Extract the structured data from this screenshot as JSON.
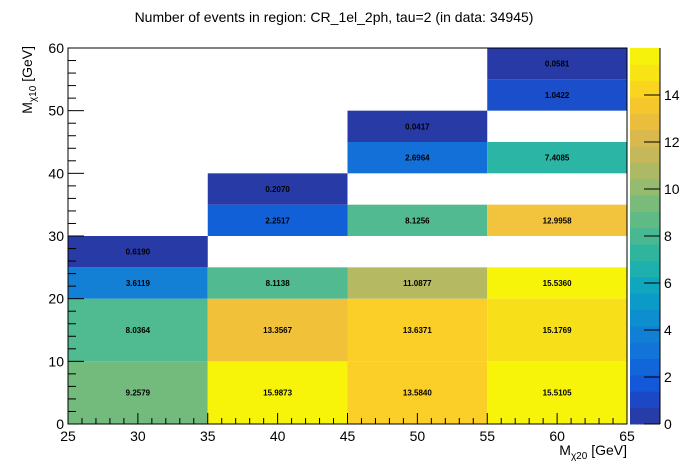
{
  "chart_data": {
    "type": "heatmap",
    "title": "Number of events in region: CR_1el_2ph, tau=2 (in data: 34945)",
    "xlabel": {
      "base": "M",
      "sub": "χ20",
      "unit": " [GeV]"
    },
    "ylabel": {
      "base": "M",
      "sub": "χ10",
      "unit": " [GeV]"
    },
    "xlim": [
      25,
      65
    ],
    "ylim": [
      0,
      60
    ],
    "zlim": [
      0,
      16
    ],
    "x_ticks": [
      "25",
      "30",
      "35",
      "40",
      "45",
      "50",
      "55",
      "60",
      "65"
    ],
    "y_ticks": [
      "0",
      "10",
      "20",
      "30",
      "40",
      "50",
      "60"
    ],
    "z_ticks": [
      "0",
      "2",
      "4",
      "6",
      "8",
      "10",
      "12",
      "14"
    ],
    "cells": [
      {
        "x": [
          25,
          35
        ],
        "y": [
          0,
          10
        ],
        "value": "9.2579",
        "color": "#72bb7d"
      },
      {
        "x": [
          25,
          35
        ],
        "y": [
          10,
          20
        ],
        "value": "8.0364",
        "color": "#50ba91"
      },
      {
        "x": [
          25,
          35
        ],
        "y": [
          20,
          25
        ],
        "value": "3.6119",
        "color": "#1380d5"
      },
      {
        "x": [
          25,
          35
        ],
        "y": [
          25,
          30
        ],
        "value": "0.6190",
        "color": "#273aa6"
      },
      {
        "x": [
          35,
          45
        ],
        "y": [
          0,
          10
        ],
        "value": "15.9873",
        "color": "#f7f40a"
      },
      {
        "x": [
          35,
          45
        ],
        "y": [
          10,
          20
        ],
        "value": "13.3567",
        "color": "#f2c13a"
      },
      {
        "x": [
          35,
          45
        ],
        "y": [
          20,
          25
        ],
        "value": "8.1138",
        "color": "#52ba90"
      },
      {
        "x": [
          35,
          45
        ],
        "y": [
          30,
          35
        ],
        "value": "2.2517",
        "color": "#1160d8"
      },
      {
        "x": [
          35,
          45
        ],
        "y": [
          35,
          40
        ],
        "value": "0.2070",
        "color": "#273aa6"
      },
      {
        "x": [
          45,
          55
        ],
        "y": [
          0,
          10
        ],
        "value": "13.5840",
        "color": "#fbcf28"
      },
      {
        "x": [
          45,
          55
        ],
        "y": [
          10,
          20
        ],
        "value": "13.6371",
        "color": "#fbcf28"
      },
      {
        "x": [
          45,
          55
        ],
        "y": [
          20,
          25
        ],
        "value": "11.0877",
        "color": "#b5ba62"
      },
      {
        "x": [
          45,
          55
        ],
        "y": [
          30,
          35
        ],
        "value": "8.1256",
        "color": "#52ba90"
      },
      {
        "x": [
          45,
          55
        ],
        "y": [
          40,
          45
        ],
        "value": "2.6964",
        "color": "#1270d8"
      },
      {
        "x": [
          45,
          55
        ],
        "y": [
          45,
          50
        ],
        "value": "0.0417",
        "color": "#273aa6"
      },
      {
        "x": [
          55,
          65
        ],
        "y": [
          0,
          10
        ],
        "value": "15.5105",
        "color": "#f7f40a"
      },
      {
        "x": [
          55,
          65
        ],
        "y": [
          10,
          20
        ],
        "value": "15.1769",
        "color": "#f7df1a"
      },
      {
        "x": [
          55,
          65
        ],
        "y": [
          20,
          25
        ],
        "value": "15.5360",
        "color": "#f7f40a"
      },
      {
        "x": [
          55,
          65
        ],
        "y": [
          30,
          35
        ],
        "value": "12.9958",
        "color": "#f2c33c"
      },
      {
        "x": [
          55,
          65
        ],
        "y": [
          40,
          45
        ],
        "value": "7.4085",
        "color": "#2bb5a5"
      },
      {
        "x": [
          55,
          65
        ],
        "y": [
          50,
          55
        ],
        "value": "1.0422",
        "color": "#1a4ecb"
      },
      {
        "x": [
          55,
          65
        ],
        "y": [
          55,
          60
        ],
        "value": "0.0581",
        "color": "#273aa6"
      }
    ],
    "palette": [
      "#283ca8",
      "#1c48c6",
      "#1358d8",
      "#1166da",
      "#1273d8",
      "#1180d4",
      "#0c8ecf",
      "#0a9bc8",
      "#10a6bd",
      "#1eb0ae",
      "#2fb59e",
      "#47b892",
      "#60ba86",
      "#7abb7b",
      "#94bb6f",
      "#adb965",
      "#c4b85a",
      "#d9b84d",
      "#ebbd3d",
      "#f6c72d",
      "#f9d520",
      "#f8e414",
      "#f7f20b"
    ]
  }
}
